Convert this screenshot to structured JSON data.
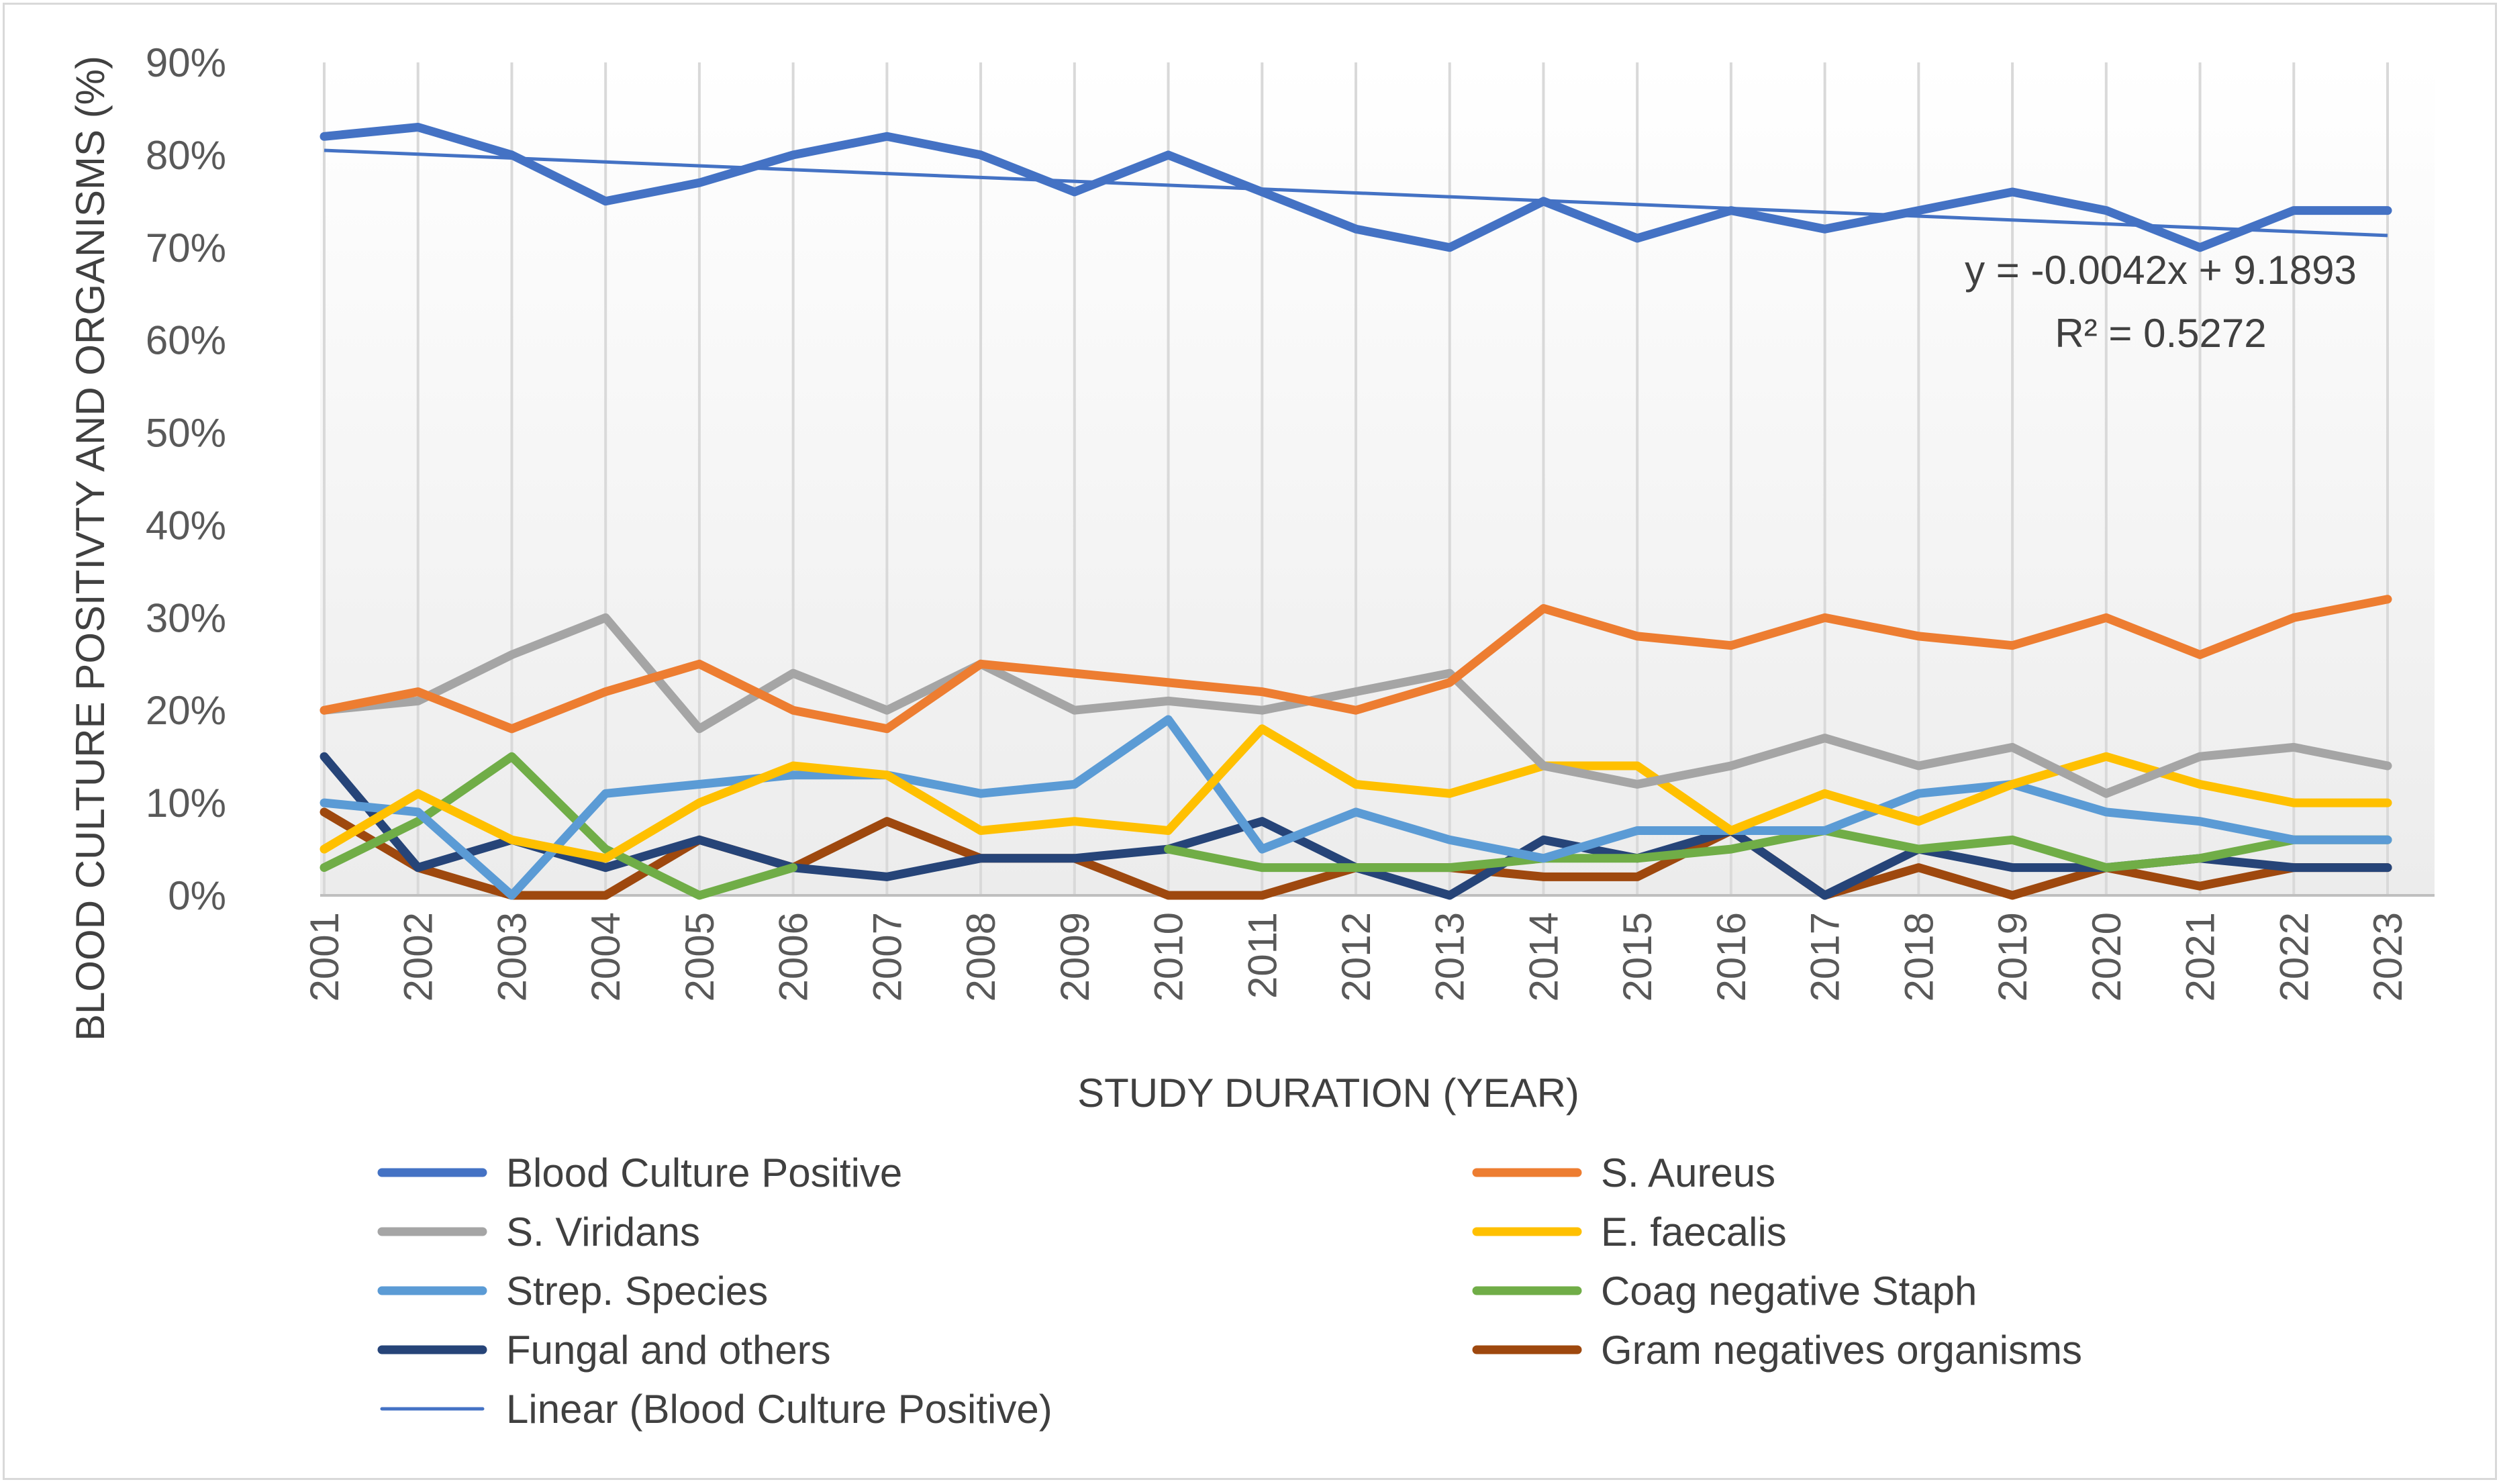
{
  "chart_data": {
    "type": "line",
    "title": "",
    "xlabel": "STUDY DURATION (YEAR)",
    "ylabel": "BLOOD CULTURE POSITIVTY AND ORGANISMS (%)",
    "ylim": [
      0,
      90
    ],
    "yticks": [
      0,
      10,
      20,
      30,
      40,
      50,
      60,
      70,
      80,
      90
    ],
    "ytick_labels": [
      "0%",
      "10%",
      "20%",
      "30%",
      "40%",
      "50%",
      "60%",
      "70%",
      "80%",
      "90%"
    ],
    "grid": "vertical",
    "legend_position": "bottom",
    "categories": [
      "2001",
      "2002",
      "2003",
      "2004",
      "2005",
      "2006",
      "2007",
      "2008",
      "2009",
      "2010",
      "2011",
      "2012",
      "2013",
      "2014",
      "2015",
      "2016",
      "2017",
      "2018",
      "2019",
      "2020",
      "2021",
      "2022",
      "2023"
    ],
    "series": [
      {
        "name": "Blood Culture Positive",
        "color": "#4472C4",
        "values": [
          82,
          83,
          80,
          75,
          77,
          80,
          82,
          80,
          76,
          80,
          76,
          72,
          70,
          75,
          71,
          74,
          72,
          74,
          76,
          74,
          70,
          74,
          74
        ]
      },
      {
        "name": "S. Aureus",
        "color": "#ED7D31",
        "values": [
          20,
          22,
          18,
          22,
          25,
          20,
          18,
          25,
          24,
          23,
          22,
          20,
          23,
          31,
          28,
          27,
          30,
          28,
          27,
          30,
          26,
          30,
          32
        ]
      },
      {
        "name": "S. Viridans",
        "color": "#A5A5A5",
        "values": [
          20,
          21,
          26,
          30,
          18,
          24,
          20,
          25,
          20,
          21,
          20,
          22,
          24,
          14,
          12,
          14,
          17,
          14,
          16,
          11,
          15,
          16,
          14
        ]
      },
      {
        "name": "E. faecalis",
        "color": "#FFC000",
        "values": [
          5,
          11,
          6,
          4,
          10,
          14,
          13,
          7,
          8,
          7,
          18,
          12,
          11,
          14,
          14,
          7,
          11,
          8,
          12,
          15,
          12,
          10,
          10
        ]
      },
      {
        "name": "Strep. Species",
        "color": "#5B9BD5",
        "values": [
          10,
          9,
          0,
          11,
          12,
          13,
          13,
          11,
          12,
          19,
          5,
          9,
          6,
          4,
          7,
          7,
          7,
          11,
          12,
          9,
          8,
          6,
          6
        ]
      },
      {
        "name": "Coag negative Staph",
        "color": "#70AD47",
        "values": [
          3,
          8,
          15,
          5,
          0,
          3,
          null,
          null,
          null,
          5,
          3,
          3,
          3,
          4,
          4,
          5,
          7,
          5,
          6,
          3,
          4,
          6,
          6
        ]
      },
      {
        "name": "Fungal and others",
        "color": "#264478",
        "values": [
          15,
          3,
          6,
          3,
          6,
          3,
          2,
          4,
          4,
          5,
          8,
          3,
          0,
          6,
          4,
          7,
          0,
          5,
          3,
          3,
          4,
          3,
          3
        ]
      },
      {
        "name": "Gram negatives organisms",
        "color": "#9E480E",
        "values": [
          9,
          3,
          0,
          0,
          6,
          3,
          8,
          4,
          4,
          0,
          0,
          3,
          3,
          2,
          2,
          7,
          0,
          3,
          0,
          3,
          1,
          3,
          3
        ]
      }
    ],
    "trendline": {
      "name": "Linear (Blood Culture Positive)",
      "color": "#4472C4",
      "start_value": 80.5,
      "end_value": 71.3,
      "equation": "y = -0.0042x + 9.1893",
      "r_squared": "R² = 0.5272"
    }
  }
}
